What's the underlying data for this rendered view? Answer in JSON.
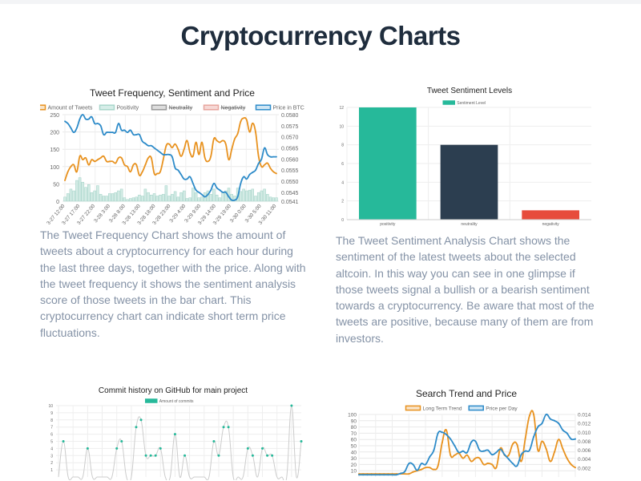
{
  "page_title": "Cryptocurrency Charts",
  "descriptions": {
    "tweet_frequency": "The Tweet Frequency Chart shows the amount of tweets about a cryptocurrency for each hour during the last three days, together with the price. Along with the tweet frequency it shows the sentiment analysis score of those tweets in the bar chart. This cryptocurrency chart can indicate short term price fluctuations.",
    "tweet_sentiment": "The Tweet Sentiment Analysis Chart shows the sentiment of the latest tweets about the selected altcoin. In this way you can see in one glimpse if those tweets signal a bullish or a bearish sentiment towards a cryptocurrency. Be aware that most of the tweets are positive, because many of them are from investors."
  },
  "chart_data": [
    {
      "type": "line",
      "title": "Tweet Frequency, Sentiment and Price",
      "x_tick_labels": [
        "3-27 12:00",
        "3-27 17:00",
        "3-27 22:00",
        "3-28 3:00",
        "3-28 8:00",
        "3-28 13:00",
        "3-28 18:00",
        "3-28 23:00",
        "3-29 4:00",
        "3-29 9:00",
        "3-29 14:00",
        "3-29 19:00",
        "3-30 0:00",
        "3-30 5:00",
        "3-30 11:00"
      ],
      "ylim_left": [
        0,
        250
      ],
      "yticks_left": [
        0,
        50,
        100,
        150,
        200,
        250
      ],
      "ylim_right": [
        0.0541,
        0.058
      ],
      "yticks_right": [
        "0.0541",
        "0.0545",
        "0.0550",
        "0.0555",
        "0.0560",
        "0.0565",
        "0.0570",
        "0.0575",
        "0.0580"
      ],
      "legend": [
        "Amount of Tweets",
        "Positivity",
        "Neutrality",
        "Negativity",
        "Price in BTC"
      ],
      "legend_hidden": [
        "Neutrality",
        "Negativity"
      ],
      "legend_placement": "top",
      "grid": true,
      "series": [
        {
          "name": "Amount of Tweets",
          "axis": "left",
          "type": "line",
          "color": "#e8921f",
          "values": [
            60,
            85,
            100,
            105,
            85,
            130,
            120,
            125,
            105,
            120,
            115,
            120,
            125,
            130,
            115,
            115,
            115,
            110,
            125,
            125,
            105,
            100,
            85,
            105,
            105,
            75,
            85,
            105,
            125,
            125,
            80,
            80,
            85,
            120,
            160,
            165,
            155,
            165,
            150,
            130,
            150,
            175,
            140,
            130,
            170,
            135,
            170,
            125,
            115,
            130,
            180,
            175,
            170,
            175,
            165,
            120,
            150,
            180,
            195,
            230,
            240,
            235,
            200,
            225,
            200,
            130,
            100,
            105,
            110,
            95,
            85,
            80
          ]
        },
        {
          "name": "Positivity",
          "axis": "left",
          "type": "bar",
          "color": "#c7e6df",
          "values": [
            12,
            22,
            35,
            30,
            60,
            68,
            55,
            40,
            48,
            25,
            30,
            45,
            20,
            15,
            15,
            22,
            22,
            25,
            30,
            35,
            10,
            5,
            8,
            10,
            12,
            18,
            15,
            35,
            25,
            18,
            22,
            15,
            18,
            20,
            45,
            15,
            20,
            28,
            12,
            25,
            30,
            8,
            10,
            38,
            25,
            10,
            12,
            25,
            30,
            20,
            35,
            18,
            10,
            25,
            30,
            38,
            20,
            15,
            38,
            28,
            35,
            30,
            32,
            35,
            15,
            25,
            30,
            35,
            20,
            12,
            10,
            10
          ]
        },
        {
          "name": "Price in BTC",
          "axis": "right",
          "type": "line",
          "color": "#2d8bc9",
          "values": [
            0.0577,
            0.0576,
            0.0574,
            0.0572,
            0.0574,
            0.0578,
            0.058,
            0.0578,
            0.0578,
            0.0579,
            0.0576,
            0.0576,
            0.0575,
            0.0571,
            0.0572,
            0.0572,
            0.0572,
            0.0572,
            0.0576,
            0.0573,
            0.0573,
            0.0572,
            0.0573,
            0.0571,
            0.0571,
            0.0571,
            0.0568,
            0.0567,
            0.0566,
            0.0566,
            0.0565,
            0.0564,
            0.0563,
            0.0562,
            0.0562,
            0.0562,
            0.0561,
            0.0556,
            0.0555,
            0.0553,
            0.0551,
            0.0551,
            0.0552,
            0.0549,
            0.0546,
            0.0545,
            0.0544,
            0.0543,
            0.0544,
            0.0546,
            0.0549,
            0.0547,
            0.0546,
            0.0545,
            0.0545,
            0.0543,
            0.05415,
            0.05415,
            0.0543,
            0.0549,
            0.0552,
            0.0551,
            0.0553,
            0.0554,
            0.0555,
            0.0558,
            0.056,
            0.0565,
            0.0562,
            0.0561,
            0.0561,
            0.0561
          ]
        }
      ]
    },
    {
      "type": "bar",
      "title": "Tweet Sentiment Levels",
      "categories": [
        "positivity",
        "neutrality",
        "negativity"
      ],
      "values": [
        12,
        8,
        1
      ],
      "colors": [
        "#26b99a",
        "#2c3e50",
        "#e74c3c"
      ],
      "legend": [
        "Sentiment Level"
      ],
      "legend_placement": "top",
      "ylim": [
        0,
        12
      ],
      "yticks": [
        0,
        2,
        4,
        6,
        8,
        10,
        12
      ],
      "grid": true
    },
    {
      "type": "line",
      "title": "Commit history on GitHub for main project",
      "legend": [
        "Amount of commits"
      ],
      "legend_placement": "top",
      "color": "#26b99a",
      "ylim": [
        0,
        10
      ],
      "yticks": [
        1,
        2,
        3,
        4,
        5,
        6,
        7,
        8,
        9,
        10
      ],
      "grid": true,
      "values": [
        0,
        5,
        0,
        0,
        0,
        0,
        4,
        0,
        0,
        0,
        0,
        0,
        4,
        5,
        0,
        0,
        7,
        8,
        3,
        3,
        3,
        4,
        0,
        0,
        6,
        0,
        3,
        0,
        0,
        0,
        0,
        0,
        5,
        3,
        7,
        7,
        0,
        0,
        0,
        4,
        3,
        0,
        4,
        3,
        3,
        0,
        0,
        0,
        10,
        0,
        5
      ]
    },
    {
      "type": "line",
      "title": "Search Trend and Price",
      "legend": [
        "Long Term Trend",
        "Price per Day"
      ],
      "legend_placement": "top",
      "ylim_left": [
        0,
        100
      ],
      "yticks_left": [
        10,
        20,
        30,
        40,
        50,
        60,
        70,
        80,
        90,
        100
      ],
      "ylim_right": [
        0,
        0.014
      ],
      "yticks_right": [
        "0.002",
        "0.004",
        "0.006",
        "0.008",
        "0.010",
        "0.012",
        "0.014"
      ],
      "grid": true,
      "series": [
        {
          "name": "Long Term Trend",
          "axis": "left",
          "color": "#e8921f",
          "values": [
            5,
            5,
            5,
            5,
            5,
            5,
            5,
            5,
            5,
            5,
            5,
            5,
            5,
            8,
            10,
            12,
            15,
            15,
            12,
            18,
            55,
            75,
            35,
            35,
            38,
            30,
            35,
            25,
            30,
            30,
            20,
            22,
            20,
            15,
            46,
            35,
            35,
            53,
            52,
            25,
            62,
            98,
            100,
            43,
            57,
            45,
            25,
            40,
            60,
            45,
            30,
            20,
            15
          ]
        },
        {
          "name": "Price per Day",
          "axis": "right",
          "color": "#2d8bc9",
          "values": [
            0.0005,
            0.0005,
            0.0005,
            0.0005,
            0.0005,
            0.0005,
            0.0005,
            0.0005,
            0.0005,
            0.0005,
            0.0008,
            0.0012,
            0.003,
            0.0028,
            0.0015,
            0.003,
            0.0028,
            0.0045,
            0.006,
            0.0098,
            0.01,
            0.0095,
            0.0085,
            0.007,
            0.0055,
            0.0058,
            0.0055,
            0.0078,
            0.008,
            0.006,
            0.0058,
            0.006,
            0.005,
            0.0055,
            0.0062,
            0.005,
            0.004,
            0.003,
            0.0025,
            0.005,
            0.0058,
            0.006,
            0.009,
            0.0112,
            0.012,
            0.014,
            0.013,
            0.0126,
            0.012,
            0.0105,
            0.0098,
            0.0085,
            0.0085
          ]
        }
      ]
    }
  ]
}
